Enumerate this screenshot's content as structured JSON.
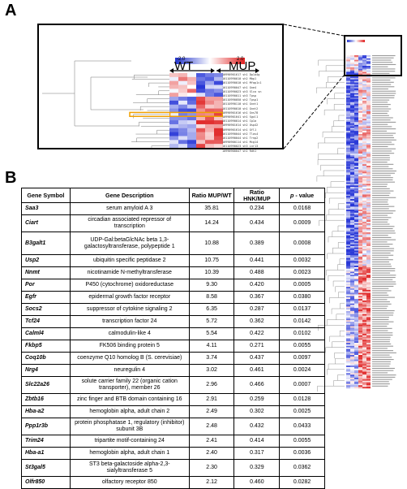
{
  "panel_labels": {
    "a": "A",
    "b": "B"
  },
  "heatmap": {
    "scale_min": "-2.0",
    "scale_max": "2.0",
    "group_wt": "WT",
    "group_mup": "MUP",
    "zoom_row_ids": [
      "10990901617 sh1 Dp1a4g",
      "10110990010 sh2 Mbp1",
      "10110990010 sh1 Mfap1c1",
      "10110990047 sh1 Gne4",
      "10110990023 sh3 Slco sn",
      "10110990011 sh3 Tpsp",
      "10110990050 sh2 Tpsp1",
      "10110990110 sh1 Gnnt1",
      "10110990010 sh1 Gnnt2",
      "10990901616 sh1 Gns78",
      "10990901641 sh1 Sgul1",
      "10110990014 sh1 Cp1a",
      "10990901614 sh2 Usp42",
      "10990901614 sh1 Gfl1",
      "10110990044 sh2 Tlos4",
      "10110990044 sh1 Trnp2",
      "10990900114 sh1 Mcg14",
      "10110990023 sh3 Lnr13",
      "10990900047 sh1 Rdh1"
    ]
  },
  "table": {
    "headers": {
      "symbol": "Gene Symbol",
      "description": "Gene Description",
      "ratio_mup_wt": "Ratio MUP/WT",
      "ratio_hnk_mup": "Ratio HNK/MUP",
      "p_value_italic": "p",
      "p_value_rest": " - value"
    },
    "rows": [
      {
        "symbol": "Saa3",
        "description": "serum amyloid A 3",
        "ratio_mup_wt": "35.81",
        "ratio_hnk_mup": "0.234",
        "p": "0.0168"
      },
      {
        "symbol": "Ciart",
        "description": "circadian associated repressor of transcription",
        "ratio_mup_wt": "14.24",
        "ratio_hnk_mup": "0.434",
        "p": "0.0009"
      },
      {
        "symbol": "B3galt1",
        "description": "UDP-Gal:betaGlcNAc beta 1,3-galactosyltransferase, polypeptide 1",
        "ratio_mup_wt": "10.88",
        "ratio_hnk_mup": "0.389",
        "p": "0.0008"
      },
      {
        "symbol": "Usp2",
        "description": "ubiquitin specific peptidase 2",
        "ratio_mup_wt": "10.75",
        "ratio_hnk_mup": "0.441",
        "p": "0.0032"
      },
      {
        "symbol": "Nnmt",
        "description": "nicotinamide N-methyltransferase",
        "ratio_mup_wt": "10.39",
        "ratio_hnk_mup": "0.488",
        "p": "0.0023"
      },
      {
        "symbol": "Por",
        "description": "P450 (cytochrome) oxidoreductase",
        "ratio_mup_wt": "9.30",
        "ratio_hnk_mup": "0.420",
        "p": "0.0005"
      },
      {
        "symbol": "Egfr",
        "description": "epidermal growth factor receptor",
        "ratio_mup_wt": "8.58",
        "ratio_hnk_mup": "0.367",
        "p": "0.0380"
      },
      {
        "symbol": "Socs2",
        "description": "suppressor of cytokine signaling 2",
        "ratio_mup_wt": "6.35",
        "ratio_hnk_mup": "0.287",
        "p": "0.0137"
      },
      {
        "symbol": "Tcf24",
        "description": "transcription factor 24",
        "ratio_mup_wt": "5.72",
        "ratio_hnk_mup": "0.362",
        "p": "0.0142"
      },
      {
        "symbol": "Calml4",
        "description": "calmodulin-like 4",
        "ratio_mup_wt": "5.54",
        "ratio_hnk_mup": "0.422",
        "p": "0.0102"
      },
      {
        "symbol": "Fkbp5",
        "description": "FK506 binding protein 5",
        "ratio_mup_wt": "4.11",
        "ratio_hnk_mup": "0.271",
        "p": "0.0055"
      },
      {
        "symbol": "Coq10b",
        "description": "coenzyme Q10 homolog B (S. cerevisiae)",
        "ratio_mup_wt": "3.74",
        "ratio_hnk_mup": "0.437",
        "p": "0.0097"
      },
      {
        "symbol": "Nrg4",
        "description": "neuregulin 4",
        "ratio_mup_wt": "3.02",
        "ratio_hnk_mup": "0.461",
        "p": "0.0024"
      },
      {
        "symbol": "Slc22a26",
        "description": "solute carrier family 22 (organic cation transporter), member 26",
        "ratio_mup_wt": "2.96",
        "ratio_hnk_mup": "0.466",
        "p": "0.0007"
      },
      {
        "symbol": "Zbtb16",
        "description": "zinc finger and BTB domain containing 16",
        "ratio_mup_wt": "2.91",
        "ratio_hnk_mup": "0.259",
        "p": "0.0128"
      },
      {
        "symbol": "Hba-a2",
        "description": "hemoglobin alpha, adult chain 2",
        "ratio_mup_wt": "2.49",
        "ratio_hnk_mup": "0.302",
        "p": "0.0025"
      },
      {
        "symbol": "Ppp1r3b",
        "description": "protein phosphatase 1, regulatory (inhibitor) subunit 3B",
        "ratio_mup_wt": "2.48",
        "ratio_hnk_mup": "0.432",
        "p": "0.0433"
      },
      {
        "symbol": "Trim24",
        "description": "tripartite motif-containing 24",
        "ratio_mup_wt": "2.41",
        "ratio_hnk_mup": "0.414",
        "p": "0.0055"
      },
      {
        "symbol": "Hba-a1",
        "description": "hemoglobin alpha, adult chain 1",
        "ratio_mup_wt": "2.40",
        "ratio_hnk_mup": "0.317",
        "p": "0.0036"
      },
      {
        "symbol": "St3gal5",
        "description": "ST3 beta-galactoside alpha-2,3-sialyltransferase 5",
        "ratio_mup_wt": "2.30",
        "ratio_hnk_mup": "0.329",
        "p": "0.0362"
      },
      {
        "symbol": "Olfr850",
        "description": "olfactory receptor 850",
        "ratio_mup_wt": "2.12",
        "ratio_hnk_mup": "0.460",
        "p": "0.0282"
      }
    ]
  }
}
